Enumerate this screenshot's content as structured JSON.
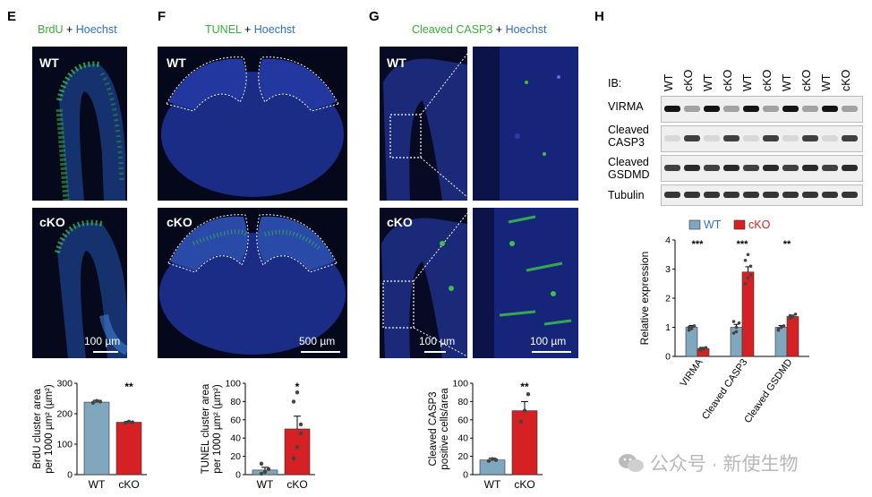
{
  "panels": {
    "E": {
      "letter": "E",
      "title_a": "BrdU",
      "plus": " + ",
      "title_b": "Hoechst",
      "wt": "WT",
      "cko": "cKO",
      "scale": "100 µm"
    },
    "F": {
      "letter": "F",
      "title_a": "TUNEL",
      "plus": " + ",
      "title_b": "Hoechst",
      "wt": "WT",
      "cko": "cKO",
      "scale": "500 µm"
    },
    "G": {
      "letter": "G",
      "title_a": "Cleaved CASP3",
      "plus": " + ",
      "title_b": "Hoechst",
      "wt": "WT",
      "cko": "cKO",
      "scale1": "100 µm",
      "scale2": "100 µm"
    },
    "H": {
      "letter": "H",
      "ib": "IB:",
      "lanes": [
        "WT",
        "cKO",
        "WT",
        "cKO",
        "WT",
        "cKO",
        "WT",
        "cKO",
        "WT",
        "cKO"
      ],
      "rows": [
        "VIRMA",
        "Cleaved\nCASP3",
        "Cleaved\nGSDMD",
        "Tubulin"
      ]
    }
  },
  "chart_data": [
    {
      "type": "bar",
      "panel": "E",
      "categories": [
        "WT",
        "cKO"
      ],
      "values": [
        238,
        172
      ],
      "errors": [
        6,
        3
      ],
      "ylabel_1": "BrdU cluster area",
      "ylabel_2": "per 1000 µm² (µm²)",
      "ylim": [
        0,
        300
      ],
      "yticks": [
        0,
        100,
        200,
        300
      ],
      "significance": "**",
      "points": [
        [
          236,
          242,
          240
        ],
        [
          170,
          174,
          172
        ]
      ]
    },
    {
      "type": "bar",
      "panel": "F",
      "categories": [
        "WT",
        "cKO"
      ],
      "values": [
        5,
        50
      ],
      "errors": [
        3,
        14
      ],
      "ylabel_1": "TUNEL cluster area",
      "ylabel_2": "per 1000 µm² (µm²)",
      "ylim": [
        0,
        100
      ],
      "yticks": [
        0,
        20,
        40,
        60,
        80,
        100
      ],
      "significance": "*",
      "points": [
        [
          1,
          3,
          6,
          12,
          3
        ],
        [
          18,
          30,
          45,
          80,
          90,
          55
        ]
      ]
    },
    {
      "type": "bar",
      "panel": "G",
      "categories": [
        "WT",
        "cKO"
      ],
      "values": [
        16,
        70
      ],
      "errors": [
        2,
        10
      ],
      "ylabel_1": "Cleaved CASP3",
      "ylabel_2": "positive cells/area",
      "ylim": [
        0,
        100
      ],
      "yticks": [
        0,
        20,
        40,
        60,
        80,
        100
      ],
      "significance": "**",
      "points": [
        [
          15,
          17,
          16
        ],
        [
          58,
          70,
          88
        ]
      ]
    },
    {
      "type": "bar",
      "panel": "H",
      "categories": [
        "VIRMA",
        "Cleaved CASP3",
        "Cleaved GSDMD"
      ],
      "series": [
        {
          "name": "WT",
          "color": "#7fa7bd",
          "values": [
            1.0,
            1.0,
            1.0
          ],
          "errors": [
            0.06,
            0.1,
            0.06
          ]
        },
        {
          "name": "cKO",
          "color": "#d52024",
          "values": [
            0.27,
            2.9,
            1.37
          ],
          "errors": [
            0.04,
            0.18,
            0.05
          ]
        }
      ],
      "ylabel": "Relative expression",
      "ylim": [
        0,
        4
      ],
      "yticks": [
        0,
        1,
        2,
        3,
        4
      ],
      "significance": [
        "***",
        "***",
        "**"
      ],
      "points": [
        [
          [
            0.9,
            1.0,
            1.05,
            1.0,
            0.95
          ],
          [
            0.8,
            1.0,
            1.15,
            1.2,
            0.85
          ],
          [
            0.9,
            1.0,
            1.05,
            0.95,
            1.0
          ]
        ],
        [
          [
            0.22,
            0.25,
            0.3,
            0.28,
            0.26
          ],
          [
            2.5,
            2.7,
            3.1,
            3.3,
            3.5,
            2.8
          ],
          [
            1.3,
            1.35,
            1.45,
            1.4,
            1.38
          ]
        ]
      ]
    }
  ],
  "watermark": "公众号 · 新使生物"
}
